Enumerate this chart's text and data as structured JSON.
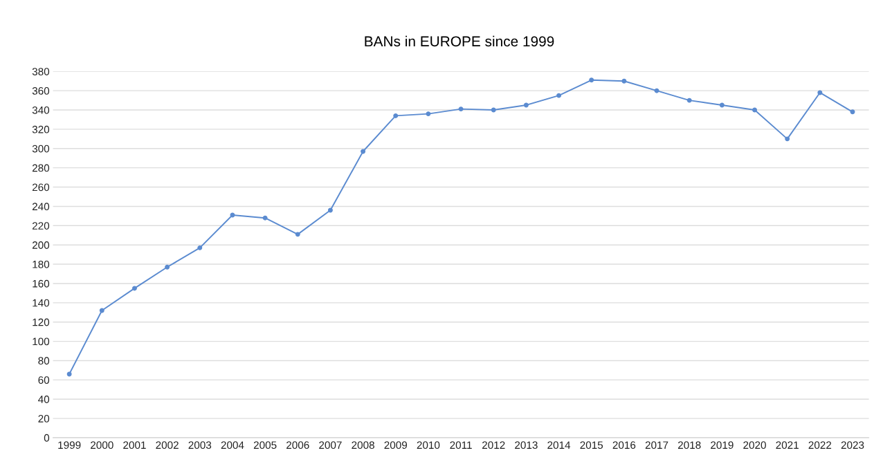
{
  "chart_data": {
    "type": "line",
    "title": "BANs in EUROPE since 1999",
    "categories": [
      "1999",
      "2000",
      "2001",
      "2002",
      "2003",
      "2004",
      "2005",
      "2006",
      "2007",
      "2008",
      "2009",
      "2010",
      "2011",
      "2012",
      "2013",
      "2014",
      "2015",
      "2016",
      "2017",
      "2018",
      "2019",
      "2020",
      "2021",
      "2022",
      "2023"
    ],
    "series": [
      {
        "color": "#5b8bd0",
        "values": [
          66,
          132,
          155,
          177,
          197,
          231,
          228,
          211,
          236,
          297,
          334,
          336,
          341,
          340,
          345,
          355,
          371,
          370,
          360,
          350,
          345,
          340,
          310,
          358,
          338
        ]
      }
    ],
    "ylim": [
      0,
      380
    ],
    "yticks": [
      0,
      20,
      40,
      60,
      80,
      100,
      120,
      140,
      160,
      180,
      200,
      220,
      240,
      260,
      280,
      300,
      320,
      340,
      360,
      380
    ],
    "grid": "y",
    "marker": "circle",
    "line_style": "solid"
  }
}
